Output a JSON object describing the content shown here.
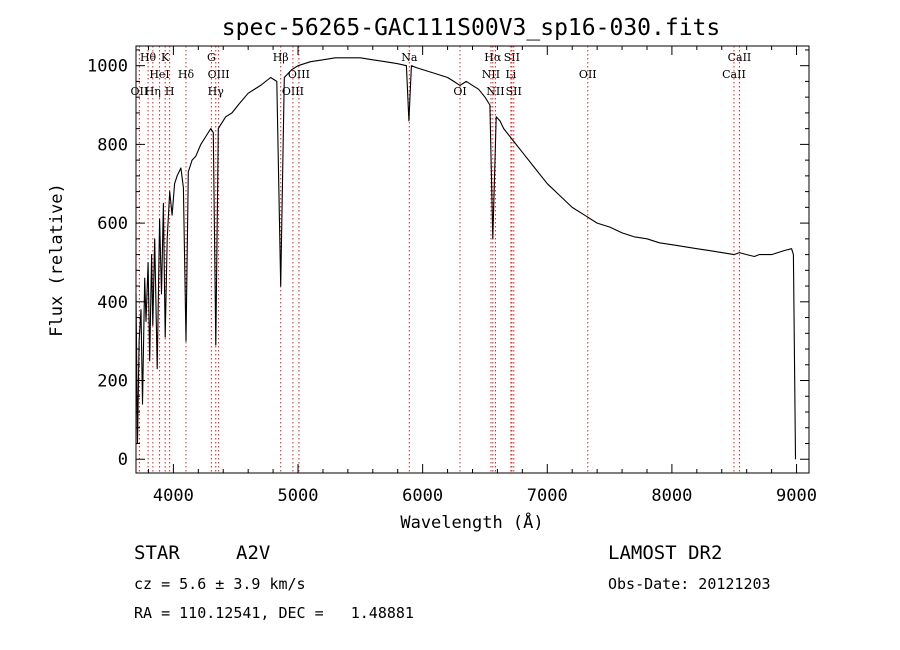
{
  "chart_data": {
    "type": "line",
    "title": "spec-56265-GAC111S00V3_sp16-030.fits",
    "xlabel": "Wavelength (Å)",
    "ylabel": "Flux (relative)",
    "xlim": [
      3700,
      9100
    ],
    "ylim": [
      -35,
      1050
    ],
    "xticks": [
      "4000",
      "5000",
      "6000",
      "7000",
      "8000",
      "9000"
    ],
    "yticks": [
      "0",
      "200",
      "400",
      "600",
      "800",
      "1000"
    ],
    "grid": false,
    "series": [
      {
        "x": [
          3700,
          3712,
          3725,
          3740,
          3752,
          3770,
          3780,
          3797,
          3810,
          3825,
          3835,
          3850,
          3870,
          3889,
          3905,
          3920,
          3934,
          3950,
          3970,
          3990,
          4010,
          4030,
          4060,
          4080,
          4101,
          4120,
          4150,
          4180,
          4220,
          4260,
          4300,
          4320,
          4340,
          4360,
          4380,
          4420,
          4470,
          4520,
          4600,
          4700,
          4780,
          4830,
          4861,
          4890,
          4950,
          5000,
          5050,
          5100,
          5200,
          5300,
          5400,
          5500,
          5600,
          5700,
          5800,
          5870,
          5890,
          5910,
          5950,
          6000,
          6100,
          6200,
          6250,
          6300,
          6350,
          6400,
          6450,
          6500,
          6540,
          6563,
          6590,
          6620,
          6650,
          6700,
          6750,
          6800,
          6900,
          7000,
          7100,
          7200,
          7300,
          7400,
          7500,
          7600,
          7700,
          7800,
          7900,
          8000,
          8100,
          8200,
          8300,
          8400,
          8498,
          8542,
          8600,
          8662,
          8700,
          8750,
          8800,
          8850,
          8900,
          8960,
          8975,
          8985,
          8992
        ],
        "y": [
          420,
          40,
          300,
          380,
          140,
          460,
          350,
          500,
          250,
          520,
          340,
          560,
          230,
          610,
          420,
          650,
          310,
          560,
          680,
          620,
          700,
          720,
          740,
          690,
          300,
          730,
          760,
          770,
          800,
          820,
          840,
          830,
          290,
          840,
          850,
          870,
          880,
          900,
          930,
          950,
          970,
          960,
          440,
          970,
          990,
          1000,
          1005,
          1010,
          1015,
          1020,
          1020,
          1020,
          1015,
          1010,
          1005,
          1000,
          860,
          1000,
          995,
          990,
          980,
          970,
          960,
          950,
          960,
          950,
          940,
          920,
          900,
          560,
          870,
          860,
          840,
          820,
          800,
          780,
          740,
          700,
          670,
          640,
          620,
          600,
          590,
          575,
          565,
          560,
          550,
          545,
          540,
          535,
          530,
          525,
          520,
          525,
          520,
          515,
          520,
          520,
          520,
          525,
          530,
          535,
          520,
          200,
          0
        ]
      }
    ],
    "spectral_lines": [
      {
        "label": "Hθ",
        "x": 3797,
        "row": 0
      },
      {
        "label": "K",
        "x": 3934,
        "row": 0
      },
      {
        "label": "HeI",
        "x": 3889,
        "row": 1
      },
      {
        "label": "Hδ",
        "x": 4101,
        "row": 1
      },
      {
        "label": "OII",
        "x": 3727,
        "row": 2
      },
      {
        "label": "Hη",
        "x": 3835,
        "row": 2
      },
      {
        "label": "H",
        "x": 3970,
        "row": 2
      },
      {
        "label": "G",
        "x": 4305,
        "row": 0
      },
      {
        "label": "OIII",
        "x": 4363,
        "row": 1
      },
      {
        "label": "Hγ",
        "x": 4340,
        "row": 2
      },
      {
        "label": "Hβ",
        "x": 4861,
        "row": 0
      },
      {
        "label": "OIII",
        "x": 5007,
        "row": 1
      },
      {
        "label": "OIII",
        "x": 4959,
        "row": 2
      },
      {
        "label": "Na",
        "x": 5893,
        "row": 0
      },
      {
        "label": "OI",
        "x": 6300,
        "row": 2
      },
      {
        "label": "Hα",
        "x": 6563,
        "row": 0
      },
      {
        "label": "SII",
        "x": 6716,
        "row": 0
      },
      {
        "label": "NII",
        "x": 6548,
        "row": 1
      },
      {
        "label": "Li",
        "x": 6708,
        "row": 1
      },
      {
        "label": "NII",
        "x": 6584,
        "row": 2
      },
      {
        "label": "SII",
        "x": 6731,
        "row": 2
      },
      {
        "label": "OII",
        "x": 7325,
        "row": 1
      },
      {
        "label": "CaII",
        "x": 8542,
        "row": 0
      },
      {
        "label": "CaII",
        "x": 8498,
        "row": 1
      }
    ]
  },
  "info": {
    "object_class": "STAR",
    "subclass": "A2V",
    "cz": "cz = 5.6 ± 3.9 km/s",
    "coords": "RA = 110.12541, DEC =   1.48881",
    "survey": "LAMOST DR2",
    "obs_date": "Obs-Date: 20121203"
  }
}
